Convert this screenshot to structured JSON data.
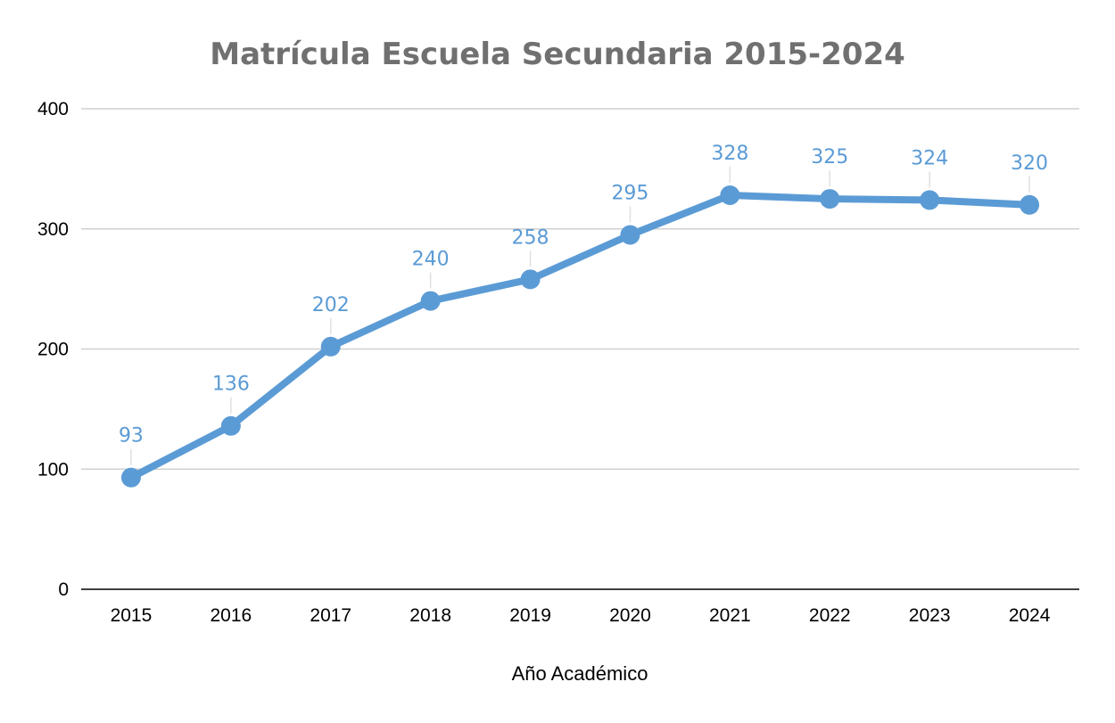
{
  "chart_data": {
    "type": "line",
    "title": "Matrícula Escuela Secundaria 2015-2024",
    "xlabel": "Año Académico",
    "ylabel": "",
    "categories": [
      "2015",
      "2016",
      "2017",
      "2018",
      "2019",
      "2020",
      "2021",
      "2022",
      "2023",
      "2024"
    ],
    "series": [
      {
        "values": [
          93,
          136,
          202,
          240,
          258,
          295,
          328,
          325,
          324,
          320
        ]
      }
    ],
    "ylim": [
      0,
      400
    ],
    "yticks": [
      0,
      100,
      200,
      300,
      400
    ],
    "grid": true,
    "legend": "none",
    "data_labels": true,
    "colors": {
      "series": "#5b9bd5",
      "title": "#707070",
      "grid": "#d0d0d0",
      "leader": "#e0e0e0"
    }
  }
}
